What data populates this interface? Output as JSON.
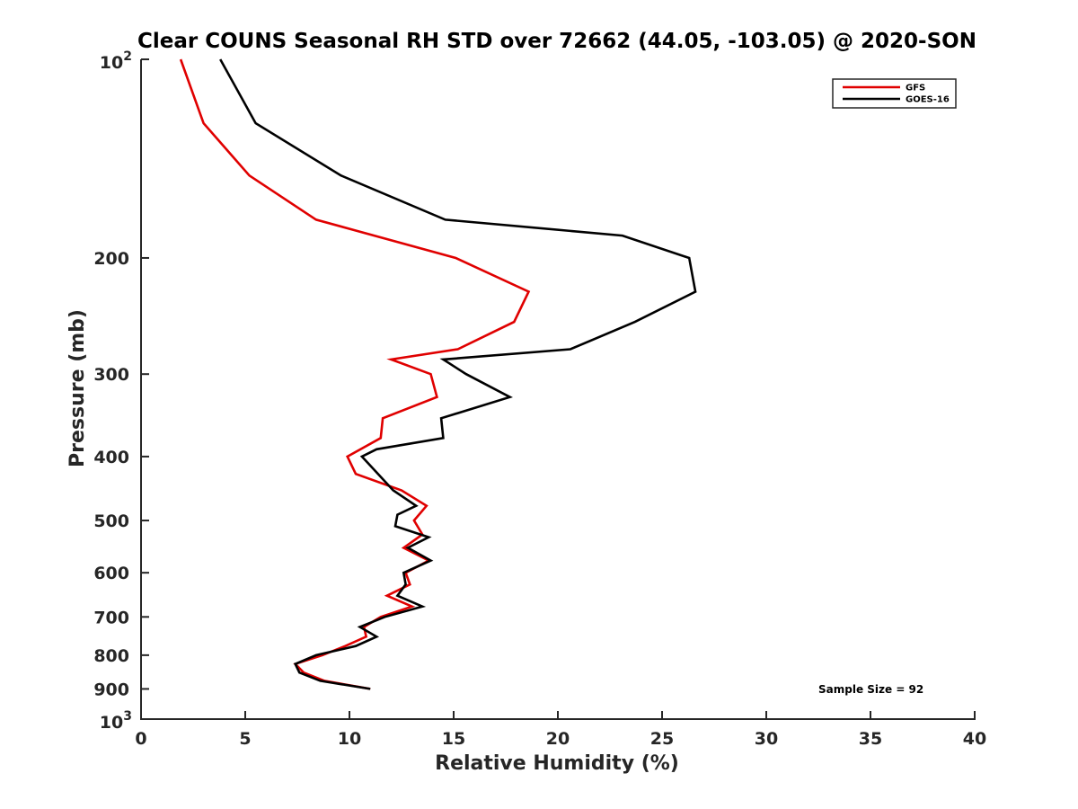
{
  "chart_data": {
    "type": "line",
    "title": "Clear COUNS Seasonal RH STD over 72662 (44.05, -103.05) @ 2020-SON",
    "xlabel": "Relative Humidity (%)",
    "ylabel": "Pressure (mb)",
    "xlim": [
      0,
      40
    ],
    "ylim": [
      100,
      1000
    ],
    "yscale": "log",
    "y_reversed": true,
    "xticks": [
      "0",
      "5",
      "10",
      "15",
      "20",
      "25",
      "30",
      "35",
      "40"
    ],
    "yticks": [
      {
        "value": 100,
        "base": "10",
        "exp": "2"
      },
      {
        "value": 200,
        "label": "200"
      },
      {
        "value": 300,
        "label": "300"
      },
      {
        "value": 400,
        "label": "400"
      },
      {
        "value": 500,
        "label": "500"
      },
      {
        "value": 600,
        "label": "600"
      },
      {
        "value": 700,
        "label": "700"
      },
      {
        "value": 800,
        "label": "800"
      },
      {
        "value": 900,
        "label": "900"
      },
      {
        "value": 1000,
        "base": "10",
        "exp": "3"
      }
    ],
    "legend_position": "top-right",
    "annotation": "Sample Size = 92",
    "series": [
      {
        "name": "GFS",
        "color": "#e00000",
        "points": [
          [
            1.9,
            100
          ],
          [
            3.0,
            125
          ],
          [
            5.2,
            150
          ],
          [
            8.4,
            175
          ],
          [
            15.1,
            200
          ],
          [
            18.6,
            225
          ],
          [
            17.9,
            250
          ],
          [
            15.2,
            275
          ],
          [
            12.0,
            285
          ],
          [
            13.9,
            300
          ],
          [
            14.2,
            325
          ],
          [
            11.6,
            350
          ],
          [
            11.5,
            375
          ],
          [
            9.9,
            400
          ],
          [
            10.3,
            425
          ],
          [
            12.5,
            450
          ],
          [
            13.7,
            475
          ],
          [
            13.1,
            500
          ],
          [
            13.5,
            525
          ],
          [
            12.6,
            550
          ],
          [
            13.8,
            575
          ],
          [
            12.7,
            600
          ],
          [
            12.9,
            625
          ],
          [
            11.8,
            650
          ],
          [
            13.0,
            675
          ],
          [
            11.5,
            700
          ],
          [
            10.7,
            725
          ],
          [
            10.8,
            750
          ],
          [
            9.8,
            775
          ],
          [
            8.7,
            800
          ],
          [
            7.4,
            825
          ],
          [
            7.8,
            850
          ],
          [
            8.8,
            875
          ],
          [
            11.0,
            900
          ]
        ]
      },
      {
        "name": "GOES-16",
        "color": "#000000",
        "points": [
          [
            3.8,
            100
          ],
          [
            5.5,
            125
          ],
          [
            9.6,
            150
          ],
          [
            14.6,
            175
          ],
          [
            23.1,
            185
          ],
          [
            26.3,
            200
          ],
          [
            26.6,
            225
          ],
          [
            23.7,
            250
          ],
          [
            20.6,
            275
          ],
          [
            14.5,
            285
          ],
          [
            15.6,
            300
          ],
          [
            17.7,
            325
          ],
          [
            14.4,
            350
          ],
          [
            14.5,
            375
          ],
          [
            11.3,
            390
          ],
          [
            10.6,
            400
          ],
          [
            12.1,
            450
          ],
          [
            13.2,
            475
          ],
          [
            12.3,
            490
          ],
          [
            12.2,
            510
          ],
          [
            13.8,
            530
          ],
          [
            12.8,
            550
          ],
          [
            13.9,
            575
          ],
          [
            12.6,
            600
          ],
          [
            12.7,
            625
          ],
          [
            12.3,
            650
          ],
          [
            13.5,
            675
          ],
          [
            11.7,
            700
          ],
          [
            10.5,
            725
          ],
          [
            11.3,
            750
          ],
          [
            10.3,
            775
          ],
          [
            8.4,
            800
          ],
          [
            7.4,
            825
          ],
          [
            7.6,
            850
          ],
          [
            8.6,
            875
          ],
          [
            11.0,
            900
          ]
        ]
      }
    ]
  }
}
